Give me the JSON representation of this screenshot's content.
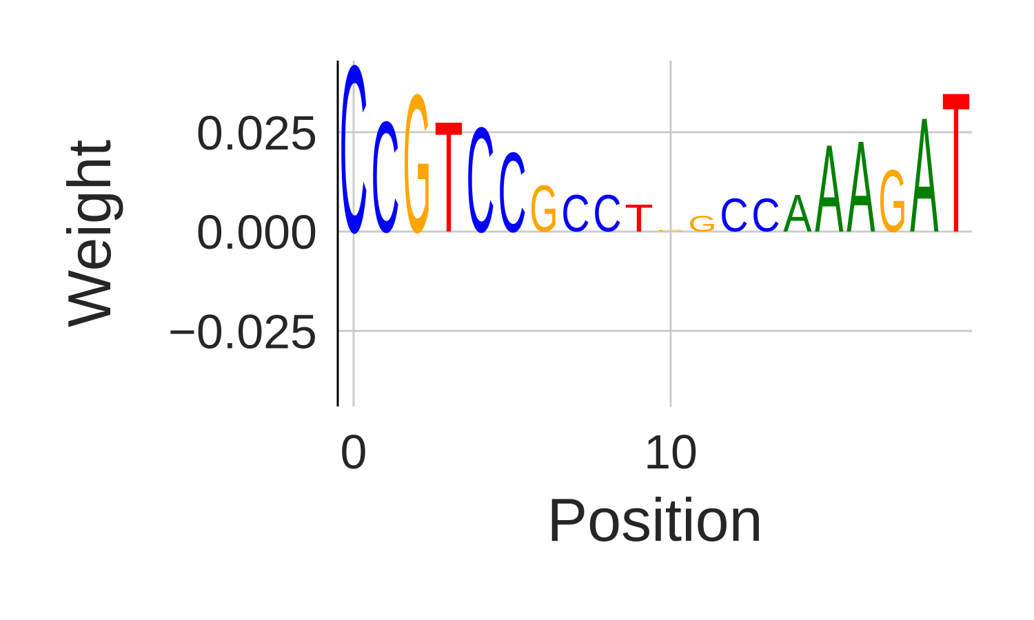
{
  "chart_data": {
    "type": "sequence-logo",
    "xlabel": "Position",
    "ylabel": "Weight",
    "xlim": [
      -0.5,
      19.5
    ],
    "ylim": [
      -0.044,
      0.043
    ],
    "x_ticks": [
      0,
      10
    ],
    "y_ticks": [
      -0.025,
      0.0,
      0.025
    ],
    "y_tick_labels": [
      "−0.025",
      "0.000",
      "0.025"
    ],
    "grid": true,
    "colors": {
      "A": "#008000",
      "C": "#0000ff",
      "G": "#ffa500",
      "T": "#ff0000"
    },
    "positions": [
      {
        "x": 0,
        "letter": "C",
        "value": 0.043
      },
      {
        "x": 1,
        "letter": "C",
        "value": 0.0285
      },
      {
        "x": 2,
        "letter": "G",
        "value": 0.0355
      },
      {
        "x": 3,
        "letter": "T",
        "value": 0.0285
      },
      {
        "x": 4,
        "letter": "C",
        "value": 0.027
      },
      {
        "x": 5,
        "letter": "C",
        "value": 0.0205
      },
      {
        "x": 6,
        "letter": "G",
        "value": 0.012
      },
      {
        "x": 7,
        "letter": "C",
        "value": 0.0095
      },
      {
        "x": 8,
        "letter": "C",
        "value": 0.0095
      },
      {
        "x": 9,
        "letter": "T",
        "value": 0.007
      },
      {
        "x": 10,
        "letter": "G",
        "value": 0.0005
      },
      {
        "x": 11,
        "letter": "G",
        "value": 0.004
      },
      {
        "x": 12,
        "letter": "C",
        "value": 0.0085
      },
      {
        "x": 13,
        "letter": "C",
        "value": 0.0085
      },
      {
        "x": 14,
        "letter": "A",
        "value": 0.0095
      },
      {
        "x": 15,
        "letter": "A",
        "value": 0.0225
      },
      {
        "x": 16,
        "letter": "A",
        "value": 0.0235
      },
      {
        "x": 17,
        "letter": "G",
        "value": 0.016
      },
      {
        "x": 18,
        "letter": "A",
        "value": 0.0295
      },
      {
        "x": 19,
        "letter": "T",
        "value": 0.036
      }
    ]
  }
}
